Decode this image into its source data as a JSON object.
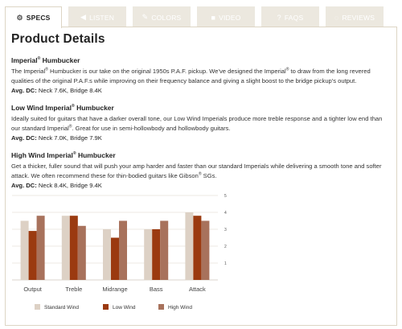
{
  "tabs": [
    {
      "label": "SPECS",
      "icon": "gears-icon",
      "glyph": "⚙",
      "active": true
    },
    {
      "label": "LISTEN",
      "icon": "speaker-icon",
      "glyph": "◀",
      "active": false
    },
    {
      "label": "COLORS",
      "icon": "pick-icon",
      "glyph": "✎",
      "active": false
    },
    {
      "label": "VIDEO",
      "icon": "video-camera-icon",
      "glyph": "■",
      "active": false
    },
    {
      "label": "FAQs",
      "icon": "question-icon",
      "glyph": "?",
      "active": false
    },
    {
      "label": "REVIEWS",
      "icon": "comment-icon",
      "glyph": "◌",
      "active": false
    }
  ],
  "page_title": "Product Details",
  "sections": [
    {
      "title": "Imperial",
      "title_suffix": " Humbucker",
      "desc_parts": [
        "The Imperial",
        " Humbucker is our take on the original 1950s P.A.F. pickup. We've designed the Imperial",
        " to draw from the long revered qualities of the original P.A.F.s while improving on their frequency balance and giving a slight boost to the bridge pickup's output."
      ],
      "dc_label": "Avg. DC:",
      "dc_value": " Neck 7.6K, Bridge 8.4K"
    },
    {
      "title": "Low Wind Imperial",
      "title_suffix": " Humbucker",
      "desc_parts": [
        "Ideally suited for guitars that have a darker overall tone, our Low Wind Imperials produce more treble response and a tighter low end than our standard Imperial",
        ". Great for use in semi-hollowbody and hollowbody guitars."
      ],
      "dc_label": "Avg. DC:",
      "dc_value": " Neck 7.0K, Bridge 7.9K"
    },
    {
      "title": "High Wind Imperial",
      "title_suffix": " Humbucker",
      "desc_parts": [
        "Get a thicker, fuller sound that will push your amp harder and faster than our standard Imperials while delivering a smooth tone and softer attack. We often recommend these for thin-bodied guitars like Gibson",
        " SGs."
      ],
      "dc_label": "Avg. DC:",
      "dc_value": " Neck 8.4K, Bridge 9.4K"
    }
  ],
  "registered_mark": "®",
  "chart_data": {
    "type": "bar",
    "categories": [
      "Output",
      "Treble",
      "Midrange",
      "Bass",
      "Attack"
    ],
    "series": [
      {
        "name": "Standard Wind",
        "color": "#ddd1c5",
        "values": [
          3.5,
          3.8,
          3.0,
          3.0,
          4.0
        ]
      },
      {
        "name": "Low Wind",
        "color": "#9b3a10",
        "values": [
          2.9,
          3.8,
          2.5,
          3.0,
          3.8
        ]
      },
      {
        "name": "High Wind",
        "color": "#a8725c",
        "values": [
          3.8,
          3.2,
          3.5,
          3.5,
          3.5
        ]
      }
    ],
    "ylim": [
      0,
      5
    ],
    "yticks": [
      "1",
      "2",
      "3",
      "4",
      "5"
    ],
    "grid": true,
    "legend_position": "bottom"
  }
}
